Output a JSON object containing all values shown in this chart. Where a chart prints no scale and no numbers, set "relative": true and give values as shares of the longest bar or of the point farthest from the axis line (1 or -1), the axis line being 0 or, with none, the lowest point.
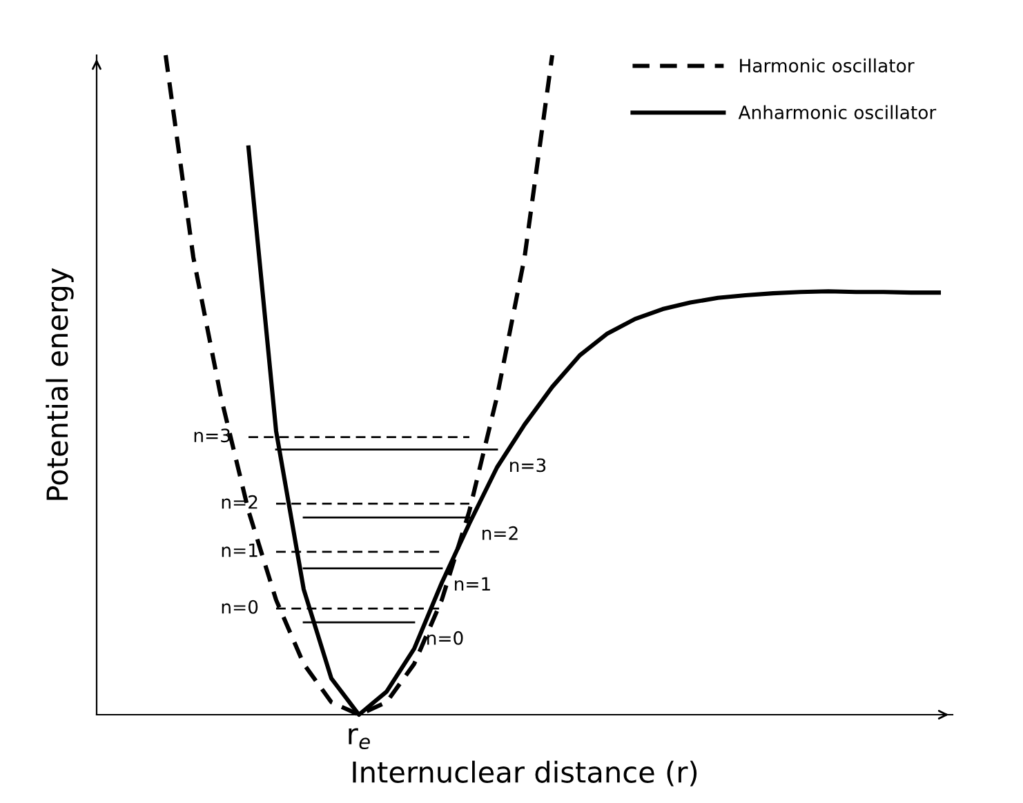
{
  "chart_data": {
    "type": "line",
    "relative": true,
    "xlabel": "Internuclear distance (r)",
    "ylabel": "Potential energy",
    "legend": "top right",
    "marker": "none",
    "annotations": [
      "r$_{e}$"
    ],
    "categories": [
      null,
      null,
      null,
      null,
      null,
      null,
      null,
      null,
      null,
      null,
      null,
      null,
      null,
      null,
      null,
      null,
      null,
      null,
      null,
      null,
      null,
      null,
      null,
      null,
      null,
      null,
      null,
      null,
      null,
      null,
      null
    ],
    "series": [
      {
        "name": "Harmonic oscillator",
        "color": "#000000",
        "line_style": "dashed",
        "values": [
          null,
          null,
          1.0,
          0.694,
          0.482,
          0.309,
          0.174,
          0.077,
          0.019,
          0,
          0.019,
          0.077,
          0.174,
          0.309,
          0.482,
          0.694,
          1.0,
          null,
          null,
          null,
          null,
          null,
          null,
          null,
          null,
          null,
          null,
          null,
          null,
          null,
          null
        ]
      },
      {
        "name": "Anharmonic oscillator",
        "color": "#000000",
        "line_style": "solid",
        "values": [
          null,
          null,
          null,
          null,
          null,
          0.86,
          0.43,
          0.19,
          0.055,
          0,
          0.035,
          0.1,
          0.2,
          0.29,
          0.375,
          0.44,
          0.497,
          0.545,
          0.578,
          0.6,
          0.615,
          0.625,
          0.632,
          0.636,
          0.639,
          0.641,
          0.642,
          0.641,
          0.641,
          0.64,
          0.64
        ]
      },
      {
        "name": "n=0",
        "color": "#000000",
        "line_style": "dashed",
        "values": [
          null,
          null,
          null,
          null,
          null,
          null,
          0.161,
          0.161,
          0.161,
          0.161,
          0.161,
          0.161,
          0.161,
          null,
          null,
          null,
          null,
          null,
          null,
          null,
          null,
          null,
          null,
          null,
          null,
          null,
          null,
          null,
          null,
          null,
          null
        ]
      },
      {
        "name": "n=1",
        "color": "#000000",
        "line_style": "dashed",
        "values": [
          null,
          null,
          null,
          null,
          null,
          null,
          0.247,
          0.247,
          0.247,
          0.247,
          0.247,
          0.247,
          0.247,
          null,
          null,
          null,
          null,
          null,
          null,
          null,
          null,
          null,
          null,
          null,
          null,
          null,
          null,
          null,
          null,
          null,
          null
        ]
      },
      {
        "name": "n=2",
        "color": "#000000",
        "line_style": "dashed",
        "values": [
          null,
          null,
          null,
          null,
          null,
          null,
          0.32,
          0.32,
          0.32,
          0.32,
          0.32,
          0.32,
          0.32,
          0.32,
          null,
          null,
          null,
          null,
          null,
          null,
          null,
          null,
          null,
          null,
          null,
          null,
          null,
          null,
          null,
          null,
          null
        ]
      },
      {
        "name": "n=3",
        "color": "#000000",
        "line_style": "dashed",
        "values": [
          null,
          null,
          null,
          null,
          null,
          0.421,
          0.421,
          0.421,
          0.421,
          0.421,
          0.421,
          0.421,
          0.421,
          0.421,
          null,
          null,
          null,
          null,
          null,
          null,
          null,
          null,
          null,
          null,
          null,
          null,
          null,
          null,
          null,
          null,
          null
        ]
      },
      {
        "name": "n=0",
        "color": "#000000",
        "line_style": "solid",
        "values": [
          null,
          null,
          null,
          null,
          null,
          null,
          null,
          0.14,
          0.14,
          0.14,
          0.14,
          0.14,
          null,
          null,
          null,
          null,
          null,
          null,
          null,
          null,
          null,
          null,
          null,
          null,
          null,
          null,
          null,
          null,
          null,
          null,
          null
        ]
      },
      {
        "name": "n=1",
        "color": "#000000",
        "line_style": "solid",
        "values": [
          null,
          null,
          null,
          null,
          null,
          null,
          null,
          0.222,
          0.222,
          0.222,
          0.222,
          0.222,
          0.222,
          null,
          null,
          null,
          null,
          null,
          null,
          null,
          null,
          null,
          null,
          null,
          null,
          null,
          null,
          null,
          null,
          null,
          null
        ]
      },
      {
        "name": "n=2",
        "color": "#000000",
        "line_style": "solid",
        "values": [
          null,
          null,
          null,
          null,
          null,
          null,
          null,
          0.299,
          0.299,
          0.299,
          0.299,
          0.299,
          0.299,
          0.299,
          null,
          null,
          null,
          null,
          null,
          null,
          null,
          null,
          null,
          null,
          null,
          null,
          null,
          null,
          null,
          null,
          null
        ]
      },
      {
        "name": "n=3",
        "color": "#000000",
        "line_style": "solid",
        "values": [
          null,
          null,
          null,
          null,
          null,
          null,
          0.402,
          0.402,
          0.402,
          0.402,
          0.402,
          0.402,
          0.402,
          0.402,
          0.402,
          null,
          null,
          null,
          null,
          null,
          null,
          null,
          null,
          null,
          null,
          null,
          null,
          null,
          null,
          null,
          null
        ]
      }
    ]
  }
}
